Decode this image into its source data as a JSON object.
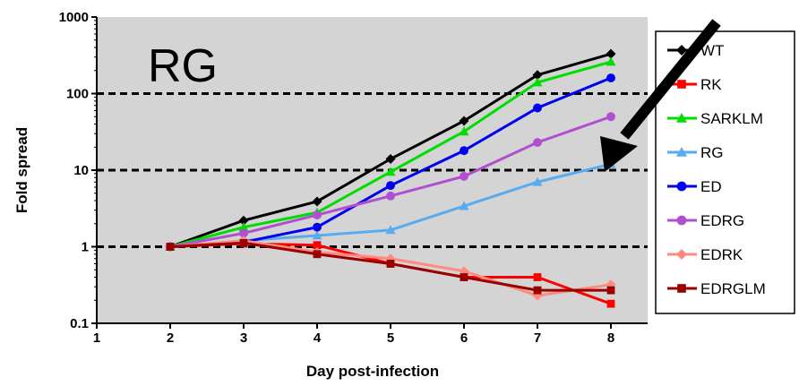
{
  "chart_data": {
    "type": "line",
    "title": "RG",
    "xlabel": "Day post-infection",
    "ylabel": "Fold spread",
    "x_ticks": [
      "1",
      "2",
      "3",
      "4",
      "5",
      "6",
      "7",
      "8"
    ],
    "y_ticks": [
      "0.1",
      "1",
      "10",
      "100",
      "1000"
    ],
    "xlim": [
      1,
      8.5
    ],
    "ylim": [
      0.1,
      1000
    ],
    "y_scale": "log",
    "grid": "dashed lines at 1, 10, 100",
    "legend_position": "right",
    "plot_background": "#d4d4d4",
    "x": [
      2,
      3,
      4,
      5,
      6,
      7,
      8
    ],
    "series": [
      {
        "name": "WT",
        "color": "#000000",
        "marker": "diamond",
        "values": [
          1.0,
          2.2,
          3.9,
          14,
          44,
          175,
          330
        ]
      },
      {
        "name": "RK",
        "color": "#ff0000",
        "marker": "square",
        "values": [
          1.0,
          1.1,
          1.05,
          0.6,
          0.4,
          0.4,
          0.18
        ]
      },
      {
        "name": "SARKLM",
        "color": "#00dd00",
        "marker": "triangle",
        "values": [
          1.0,
          1.8,
          2.8,
          9.5,
          32,
          140,
          260
        ]
      },
      {
        "name": "RG",
        "color": "#5aaaf0",
        "marker": "triangle",
        "values": [
          1.0,
          1.2,
          1.4,
          1.65,
          3.4,
          7.0,
          12
        ]
      },
      {
        "name": "ED",
        "color": "#0000ee",
        "marker": "circle",
        "values": [
          1.0,
          1.15,
          1.8,
          6.3,
          18,
          65,
          160
        ]
      },
      {
        "name": "EDRG",
        "color": "#b050d0",
        "marker": "circle",
        "values": [
          1.0,
          1.5,
          2.6,
          4.6,
          8.3,
          23,
          50
        ]
      },
      {
        "name": "EDRK",
        "color": "#ff8a80",
        "marker": "diamond",
        "values": [
          1.0,
          1.2,
          0.85,
          0.7,
          0.48,
          0.23,
          0.32
        ]
      },
      {
        "name": "EDRGLM",
        "color": "#990000",
        "marker": "square",
        "values": [
          1.0,
          1.12,
          0.8,
          0.6,
          0.4,
          0.27,
          0.27
        ]
      }
    ]
  }
}
